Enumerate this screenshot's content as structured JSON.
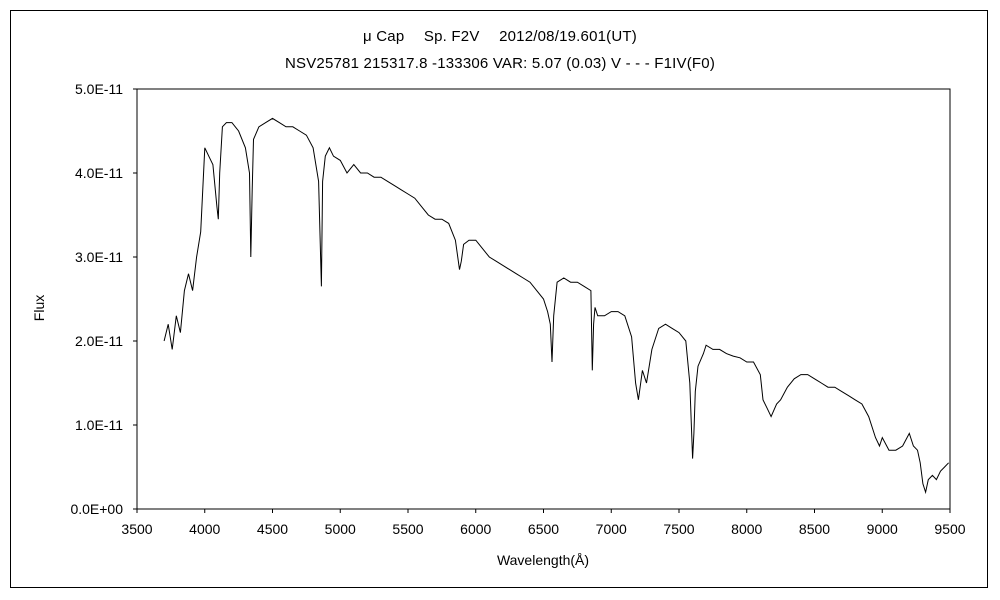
{
  "chart_data": {
    "type": "line",
    "title": "μ Cap　 Sp. F2V　 2012/08/19.601(UT)",
    "subtitle": "NSV25781 215317.8 -133306 VAR: 5.07 (0.03) V - - - F1IV(F0)",
    "xlabel": "Wavelength(Å)",
    "ylabel": "Flux",
    "xlim": [
      3500,
      9500
    ],
    "ylim": [
      0,
      5e-11
    ],
    "x_ticks": [
      3500,
      4000,
      4500,
      5000,
      5500,
      6000,
      6500,
      7000,
      7500,
      8000,
      8500,
      9000,
      9500
    ],
    "x_tick_labels": [
      "3500",
      "4000",
      "4500",
      "5000",
      "5500",
      "6000",
      "6500",
      "7000",
      "7500",
      "8000",
      "8500",
      "9000",
      "9500"
    ],
    "y_ticks": [
      0,
      1e-11,
      2e-11,
      3e-11,
      4e-11,
      5e-11
    ],
    "y_tick_labels": [
      "0.0E+00",
      "1.0E-11",
      "2.0E-11",
      "3.0E-11",
      "4.0E-11",
      "5.0E-11"
    ],
    "grid": false,
    "series": [
      {
        "values_unit": "1e-11 flux",
        "x": [
          3700,
          3730,
          3760,
          3790,
          3820,
          3850,
          3880,
          3910,
          3940,
          3970,
          4000,
          4030,
          4060,
          4090,
          4100,
          4110,
          4130,
          4160,
          4200,
          4250,
          4300,
          4330,
          4340,
          4350,
          4360,
          4400,
          4450,
          4500,
          4550,
          4600,
          4650,
          4700,
          4750,
          4800,
          4840,
          4855,
          4861,
          4870,
          4890,
          4920,
          4950,
          5000,
          5050,
          5100,
          5150,
          5200,
          5250,
          5300,
          5350,
          5400,
          5450,
          5500,
          5550,
          5600,
          5650,
          5700,
          5750,
          5800,
          5850,
          5880,
          5893,
          5910,
          5950,
          6000,
          6050,
          6100,
          6150,
          6200,
          6250,
          6300,
          6350,
          6400,
          6450,
          6500,
          6530,
          6550,
          6563,
          6575,
          6600,
          6650,
          6700,
          6750,
          6800,
          6850,
          6860,
          6870,
          6880,
          6900,
          6950,
          7000,
          7050,
          7100,
          7150,
          7180,
          7200,
          7230,
          7260,
          7300,
          7350,
          7400,
          7450,
          7500,
          7550,
          7580,
          7600,
          7610,
          7620,
          7640,
          7680,
          7700,
          7750,
          7800,
          7850,
          7900,
          7950,
          8000,
          8050,
          8100,
          8120,
          8150,
          8180,
          8220,
          8250,
          8300,
          8350,
          8400,
          8450,
          8500,
          8550,
          8600,
          8650,
          8700,
          8750,
          8800,
          8850,
          8900,
          8950,
          8980,
          9000,
          9050,
          9100,
          9150,
          9200,
          9230,
          9260,
          9280,
          9300,
          9320,
          9340,
          9370,
          9400,
          9430,
          9460,
          9490
        ],
        "y": [
          2.0,
          2.2,
          1.9,
          2.3,
          2.1,
          2.6,
          2.8,
          2.6,
          3.0,
          3.3,
          4.3,
          4.2,
          4.1,
          3.6,
          3.45,
          4.0,
          4.55,
          4.6,
          4.6,
          4.5,
          4.3,
          4.0,
          3.0,
          3.8,
          4.4,
          4.55,
          4.6,
          4.65,
          4.6,
          4.55,
          4.55,
          4.5,
          4.45,
          4.3,
          3.9,
          3.0,
          2.65,
          3.9,
          4.2,
          4.3,
          4.2,
          4.15,
          4.0,
          4.1,
          4.0,
          4.0,
          3.95,
          3.95,
          3.9,
          3.85,
          3.8,
          3.75,
          3.7,
          3.6,
          3.5,
          3.45,
          3.45,
          3.4,
          3.2,
          2.85,
          2.95,
          3.15,
          3.2,
          3.2,
          3.1,
          3.0,
          2.95,
          2.9,
          2.85,
          2.8,
          2.75,
          2.7,
          2.6,
          2.5,
          2.35,
          2.2,
          1.75,
          2.3,
          2.7,
          2.75,
          2.7,
          2.7,
          2.65,
          2.6,
          1.65,
          2.2,
          2.4,
          2.3,
          2.3,
          2.35,
          2.35,
          2.3,
          2.05,
          1.5,
          1.3,
          1.65,
          1.5,
          1.9,
          2.15,
          2.2,
          2.15,
          2.1,
          2.0,
          1.5,
          0.6,
          0.9,
          1.4,
          1.7,
          1.85,
          1.95,
          1.9,
          1.9,
          1.85,
          1.82,
          1.8,
          1.75,
          1.75,
          1.6,
          1.3,
          1.2,
          1.1,
          1.25,
          1.3,
          1.45,
          1.55,
          1.6,
          1.6,
          1.55,
          1.5,
          1.45,
          1.45,
          1.4,
          1.35,
          1.3,
          1.25,
          1.1,
          0.85,
          0.75,
          0.85,
          0.7,
          0.7,
          0.75,
          0.9,
          0.75,
          0.7,
          0.55,
          0.3,
          0.2,
          0.35,
          0.4,
          0.35,
          0.45,
          0.5,
          0.55
        ]
      }
    ]
  }
}
